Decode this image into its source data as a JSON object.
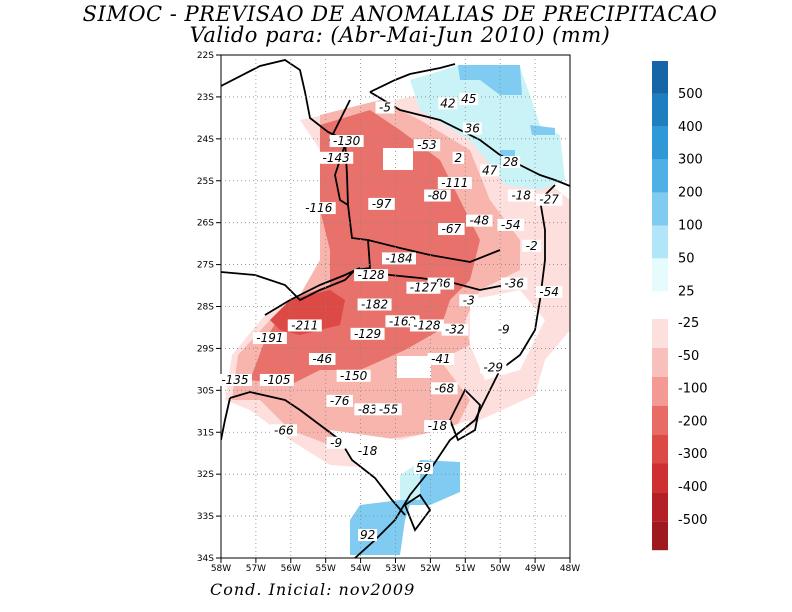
{
  "title_line1": "SIMOC - PREVISAO DE ANOMALIAS DE PRECIPITACAO",
  "title_line2": "Valido para: (Abr-Mai-Jun 2010) (mm)",
  "footer": "Cond. Inicial: nov2009",
  "lat_labels": [
    "22S",
    "23S",
    "24S",
    "25S",
    "26S",
    "27S",
    "28S",
    "29S",
    "30S",
    "31S",
    "32S",
    "33S",
    "34S"
  ],
  "lon_labels": [
    "58W",
    "57W",
    "56W",
    "55W",
    "54W",
    "53W",
    "52W",
    "51W",
    "50W",
    "49W",
    "48W"
  ],
  "legend_positive": {
    "labels": [
      "500",
      "400",
      "300",
      "200",
      "100",
      "50",
      "25"
    ],
    "colors": [
      "#1565a8",
      "#1e7fc0",
      "#2f98d6",
      "#4fb0e6",
      "#7fcbf2",
      "#b0e6f8",
      "#e6fbfc"
    ]
  },
  "legend_negative": {
    "labels": [
      "-25",
      "-50",
      "-100",
      "-200",
      "-300",
      "-400",
      "-500"
    ],
    "colors": [
      "#fde0dd",
      "#f9c0bb",
      "#f29a93",
      "#e86c66",
      "#dd4945",
      "#cf2f30",
      "#b52026",
      "#9e1a1e"
    ]
  },
  "contour_labels": [
    {
      "text": "-5",
      "lon": -53.3,
      "lat": -23.3
    },
    {
      "text": "42",
      "lon": -51.5,
      "lat": -23.2
    },
    {
      "text": "45",
      "lon": -50.9,
      "lat": -23.1
    },
    {
      "text": "36",
      "lon": -50.8,
      "lat": -23.8
    },
    {
      "text": "28",
      "lon": -49.7,
      "lat": -24.6
    },
    {
      "text": "47",
      "lon": -50.3,
      "lat": -24.8
    },
    {
      "text": "2",
      "lon": -51.2,
      "lat": -24.5
    },
    {
      "text": "-53",
      "lon": -52.1,
      "lat": -24.2
    },
    {
      "text": "-130",
      "lon": -54.4,
      "lat": -24.1
    },
    {
      "text": "-143",
      "lon": -54.7,
      "lat": -24.5
    },
    {
      "text": "-111",
      "lon": -51.3,
      "lat": -25.1
    },
    {
      "text": "-18",
      "lon": -49.4,
      "lat": -25.4
    },
    {
      "text": "-27",
      "lon": -48.6,
      "lat": -25.5
    },
    {
      "text": "-80",
      "lon": -51.8,
      "lat": -25.4
    },
    {
      "text": "-97",
      "lon": -53.4,
      "lat": -25.6
    },
    {
      "text": "-116",
      "lon": -55.2,
      "lat": -25.7
    },
    {
      "text": "-48",
      "lon": -50.6,
      "lat": -26.0
    },
    {
      "text": "-54",
      "lon": -49.7,
      "lat": -26.1
    },
    {
      "text": "-67",
      "lon": -51.4,
      "lat": -26.2
    },
    {
      "text": "-2",
      "lon": -49.1,
      "lat": -26.6
    },
    {
      "text": "-184",
      "lon": -52.9,
      "lat": -26.9
    },
    {
      "text": "-128",
      "lon": -53.7,
      "lat": -27.3
    },
    {
      "text": "-86",
      "lon": -51.7,
      "lat": -27.5
    },
    {
      "text": "-127",
      "lon": -52.2,
      "lat": -27.6
    },
    {
      "text": "-36",
      "lon": -49.6,
      "lat": -27.5
    },
    {
      "text": "-54",
      "lon": -48.6,
      "lat": -27.7
    },
    {
      "text": "-3",
      "lon": -50.9,
      "lat": -27.9
    },
    {
      "text": "-182",
      "lon": -53.6,
      "lat": -28.0
    },
    {
      "text": "-211",
      "lon": -55.6,
      "lat": -28.5
    },
    {
      "text": "-162",
      "lon": -52.8,
      "lat": -28.4
    },
    {
      "text": "-128",
      "lon": -52.1,
      "lat": -28.5
    },
    {
      "text": "-32",
      "lon": -51.3,
      "lat": -28.6
    },
    {
      "text": "-9",
      "lon": -49.9,
      "lat": -28.6
    },
    {
      "text": "-191",
      "lon": -56.6,
      "lat": -28.8
    },
    {
      "text": "-129",
      "lon": -53.8,
      "lat": -28.7
    },
    {
      "text": "-46",
      "lon": -55.1,
      "lat": -29.3
    },
    {
      "text": "-41",
      "lon": -51.7,
      "lat": -29.3
    },
    {
      "text": "-29",
      "lon": -50.2,
      "lat": -29.5
    },
    {
      "text": "-150",
      "lon": -54.2,
      "lat": -29.7
    },
    {
      "text": "-135",
      "lon": -57.6,
      "lat": -29.8
    },
    {
      "text": "-105",
      "lon": -56.4,
      "lat": -29.8
    },
    {
      "text": "-68",
      "lon": -51.6,
      "lat": -30.0
    },
    {
      "text": "-76",
      "lon": -54.6,
      "lat": -30.3
    },
    {
      "text": "-83",
      "lon": -53.8,
      "lat": -30.5
    },
    {
      "text": "-55",
      "lon": -53.2,
      "lat": -30.5
    },
    {
      "text": "-18",
      "lon": -51.8,
      "lat": -30.9
    },
    {
      "text": "-66",
      "lon": -56.2,
      "lat": -31.0
    },
    {
      "text": "-9",
      "lon": -54.7,
      "lat": -31.3
    },
    {
      "text": "-18",
      "lon": -53.8,
      "lat": -31.5
    },
    {
      "text": "59",
      "lon": -52.2,
      "lat": -31.9
    },
    {
      "text": "92",
      "lon": -53.8,
      "lat": -33.5
    }
  ]
}
